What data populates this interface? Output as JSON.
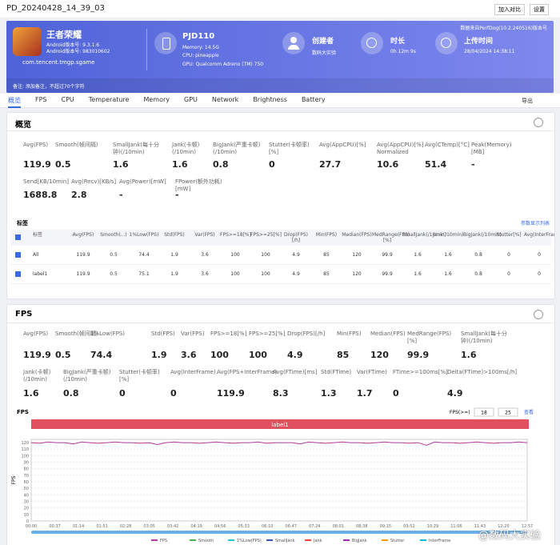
{
  "top_bar": {
    "title": "PD_20240428_14_39_03",
    "buttons": [
      "加入对比",
      "设置"
    ]
  },
  "header": {
    "app_name": "王者荣耀",
    "app_version": "Android版本号: 9.3.1.6",
    "app_build": "Android版本号: 983010602",
    "package": "com.tencent.tmgp.sgame",
    "device": "PJD110",
    "memory": "Memory: 14.5G",
    "cpu": "CPU: pineapple",
    "gpu": "GPU: Qualcomm Adreno (TM) 750",
    "creator_label": "创建者",
    "creator": "数码大实验",
    "duration_label": "时长",
    "duration": "0h 12m 9s",
    "upload_label": "上传时间",
    "upload_time": "28/04/2024 14:38:11",
    "source": "数据来自PerfDog(10.2.240516)版本号",
    "note": "备注: 添加备注，不超过70个字符"
  },
  "tabs": [
    "概览",
    "FPS",
    "CPU",
    "Temperature",
    "Memory",
    "GPU",
    "Network",
    "Brightness",
    "Battery"
  ],
  "export": "导出",
  "overview": {
    "title": "概览",
    "metrics_row1": [
      {
        "label": "Avg(FPS)",
        "value": 119.9
      },
      {
        "label": "Smooth(帧间隔)",
        "value": 0.5
      },
      {
        "label": "SmallJank(每十分钟)(/10min)",
        "value": 1.6
      },
      {
        "label": "Jank(卡顿)(/10min)",
        "value": 1.6
      },
      {
        "label": "BigJank(严重卡顿)(/10min)",
        "value": 0.8
      },
      {
        "label": "Stutter(卡顿率)[%]",
        "value": 0
      },
      {
        "label": "Avg(AppCPU)[%]",
        "value": 27.7
      },
      {
        "label": "Avg(AppCPU)[%] Normalized",
        "value": 10.6
      },
      {
        "label": "Avg(CTemp)[°C]",
        "value": 51.4
      },
      {
        "label": "Peak(Memory)[MB]",
        "value": "-"
      }
    ],
    "metrics_row2": [
      {
        "label": "Send[KB/10min]",
        "value": 1688.8
      },
      {
        "label": "Avg(Recv)[KB/s]",
        "value": 2.8
      },
      {
        "label": "Avg(Power)[mW]",
        "value": "-"
      },
      {
        "label": "FPower(额外功耗)[mW]",
        "value": "-"
      }
    ],
    "table_title": "标签",
    "table_link": "参数显示列表",
    "table": {
      "columns": [
        "标签",
        "Avg(FPS)",
        "Smooth(...)",
        "1%Low(FPS)",
        "Std(FPS)",
        "Var(FPS)",
        "FPS>=18[%]",
        "FPS>=25[%]",
        "Drop(FPS)[/h]",
        "Min(FPS)",
        "Median(FPS)",
        "MedRange(FPS)[%]",
        "SmallJank(/10min)",
        "Jank(/10min)",
        "BigJank(/10min)",
        "Stutter[%]",
        "Avg(InterFrame)"
      ],
      "rows": [
        [
          "All",
          119.9,
          0.5,
          74.4,
          1.9,
          3.6,
          100,
          100,
          4.9,
          85,
          120,
          99.9,
          1.6,
          1.6,
          0.8,
          0,
          0
        ],
        [
          "label1",
          119.9,
          0.5,
          75.1,
          1.9,
          3.6,
          100,
          100,
          4.9,
          85,
          120,
          99.9,
          1.6,
          1.6,
          0.8,
          0,
          0
        ]
      ]
    }
  },
  "fps_section": {
    "title": "FPS",
    "metrics_row1": [
      {
        "label": "Avg(FPS)",
        "value": 119.9
      },
      {
        "label": "Smooth(帧间隔)",
        "value": 0.5
      },
      {
        "label": "1%Low(FPS)",
        "value": 74.4
      },
      {
        "label": "Std(FPS)",
        "value": 1.9
      },
      {
        "label": "Var(FPS)",
        "value": 3.6
      },
      {
        "label": "FPS>=18[%]",
        "value": 100
      },
      {
        "label": "FPS>=25[%]",
        "value": 100
      },
      {
        "label": "Drop(FPS)[/h]",
        "value": 4.9
      },
      {
        "label": "Min(FPS)",
        "value": 85
      },
      {
        "label": "Median(FPS)",
        "value": 120
      },
      {
        "label": "MedRange(FPS)[%]",
        "value": 99.9
      },
      {
        "label": "SmallJank(每十分钟)(/10min)",
        "value": 1.6
      }
    ],
    "metrics_row2": [
      {
        "label": "Jank(卡顿)(/10min)",
        "value": 1.6
      },
      {
        "label": "BigJank(严重卡顿)(/10min)",
        "value": 0.8
      },
      {
        "label": "Stutter(卡顿率)[%]",
        "value": 0
      },
      {
        "label": "Avg(InterFrame)",
        "value": 0
      },
      {
        "label": "Avg(FPS+InterFrame)",
        "value": 119.9
      },
      {
        "label": "Avg(FTime)[ms]",
        "value": 8.3
      },
      {
        "label": "Std(FTime)",
        "value": 1.3
      },
      {
        "label": "Var(FTime)",
        "value": 1.7
      },
      {
        "label": "FTime>=100ms[%]",
        "value": 0
      },
      {
        "label": "Delta(FTime)>100ms[/h]",
        "value": 4.9
      }
    ],
    "chart": {
      "type": "line",
      "title": "FPS",
      "threshold_label": "FPS(>=)",
      "thresholds": [
        18,
        25
      ],
      "view_button": "查看",
      "label_bar": "label1",
      "y_axis_label": "FPS",
      "ylim": [
        0,
        125
      ],
      "yticks": [
        0,
        10,
        20,
        30,
        40,
        50,
        60,
        70,
        80,
        90,
        100,
        110,
        120
      ],
      "xtick_labels": [
        "00:00",
        "00:37",
        "01:14",
        "01:51",
        "02:28",
        "03:05",
        "03:42",
        "04:19",
        "04:56",
        "05:33",
        "06:10",
        "06:47",
        "07:24",
        "08:01",
        "08:38",
        "09:15",
        "09:52",
        "10:29",
        "11:06",
        "11:43",
        "12:20",
        "12:57"
      ],
      "series": [
        {
          "name": "FPS",
          "color": "#b03a9f",
          "values": [
            120,
            119,
            121,
            120,
            120,
            118,
            121,
            120,
            119,
            120,
            121,
            120,
            120,
            119,
            120,
            117,
            120,
            121,
            120,
            120,
            119,
            120,
            121,
            120,
            119,
            120,
            120,
            121,
            119,
            120,
            120,
            120,
            118,
            121,
            120,
            119,
            120,
            121,
            120,
            120,
            119,
            120,
            121,
            120,
            120,
            119,
            120,
            116,
            121,
            120,
            120,
            119,
            120,
            121,
            120,
            119,
            120,
            120,
            121,
            120
          ]
        },
        {
          "name": "Smooth",
          "color": "#4caf50"
        },
        {
          "name": "1%Low(FPS)",
          "color": "#26c6da"
        },
        {
          "name": "SmallJank",
          "color": "#3f51b5"
        },
        {
          "name": "Jank",
          "color": "#f44336"
        },
        {
          "name": "BigJank",
          "color": "#9c27b0"
        },
        {
          "name": "Stutter",
          "color": "#ff9800"
        },
        {
          "name": "InterFrame",
          "color": "#00bcd4"
        }
      ]
    }
  },
  "watermark": "@数码大实验"
}
